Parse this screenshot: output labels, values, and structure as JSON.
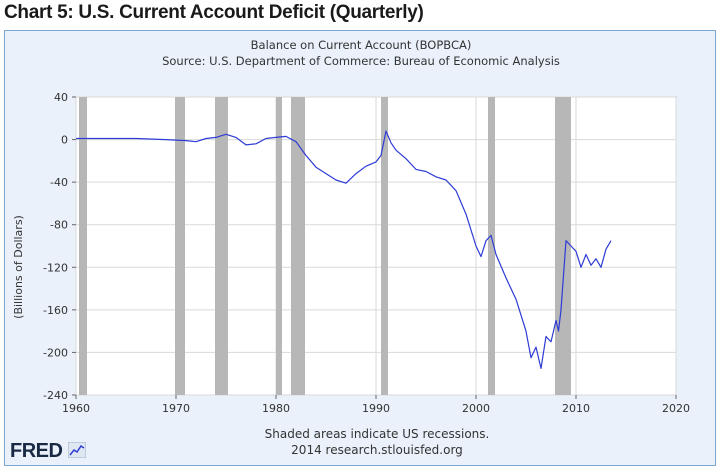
{
  "page_heading": "Chart 5:  U.S. Current Account Deficit (Quarterly)",
  "footer": {
    "note": "Shaded areas indicate US recessions.",
    "source": "2014 research.stlouisfed.org",
    "logo": "FRED"
  },
  "colors": {
    "line": "#2e3bd6",
    "recession": "#b7b7b7",
    "plot_bg": "#ffffff",
    "panel_bg": "#eaf1fa",
    "grid": "#d9d9d9"
  },
  "chart_data": {
    "type": "line",
    "title": "Balance on Current Account (BOPBCA)",
    "subtitle": "Source: U.S. Department of Commerce: Bureau of Economic Analysis",
    "xlabel": "",
    "ylabel": "(Billions of Dollars)",
    "xlim": [
      1960,
      2020
    ],
    "ylim": [
      -240,
      40
    ],
    "x_ticks": [
      1960,
      1970,
      1980,
      1990,
      2000,
      2010,
      2020
    ],
    "y_ticks": [
      40,
      0,
      -40,
      -80,
      -120,
      -160,
      -200,
      -240
    ],
    "grid": true,
    "recessions": [
      [
        1960.3,
        1961.1
      ],
      [
        1969.9,
        1970.9
      ],
      [
        1973.9,
        1975.2
      ],
      [
        1980.0,
        1980.6
      ],
      [
        1981.5,
        1982.9
      ],
      [
        1990.5,
        1991.2
      ],
      [
        2001.2,
        2001.9
      ],
      [
        2007.9,
        2009.5
      ]
    ],
    "series": [
      {
        "name": "BOPBCA",
        "x": [
          1960,
          1963,
          1966,
          1969,
          1971,
          1972,
          1973,
          1974,
          1975,
          1976,
          1977,
          1978,
          1979,
          1980,
          1981,
          1982,
          1983,
          1984,
          1985,
          1986,
          1987,
          1988,
          1989,
          1990,
          1990.5,
          1991,
          1991.5,
          1992,
          1993,
          1994,
          1995,
          1996,
          1997,
          1998,
          1999,
          2000,
          2000.5,
          2001,
          2001.5,
          2002,
          2003,
          2004,
          2005,
          2005.5,
          2006,
          2006.5,
          2007,
          2007.5,
          2008,
          2008.25,
          2008.5,
          2009,
          2009.5,
          2010,
          2010.5,
          2011,
          2011.5,
          2012,
          2012.5,
          2013,
          2013.5
        ],
        "values": [
          1,
          1,
          1,
          0,
          -1,
          -2,
          1,
          2,
          5,
          2,
          -5,
          -4,
          1,
          2,
          3,
          -2,
          -15,
          -26,
          -32,
          -38,
          -41,
          -32,
          -25,
          -21,
          -15,
          8,
          -3,
          -10,
          -18,
          -28,
          -30,
          -35,
          -38,
          -48,
          -70,
          -100,
          -110,
          -95,
          -90,
          -108,
          -130,
          -150,
          -180,
          -205,
          -195,
          -215,
          -185,
          -190,
          -170,
          -180,
          -160,
          -95,
          -100,
          -105,
          -120,
          -108,
          -118,
          -112,
          -120,
          -103,
          -95
        ]
      }
    ]
  }
}
